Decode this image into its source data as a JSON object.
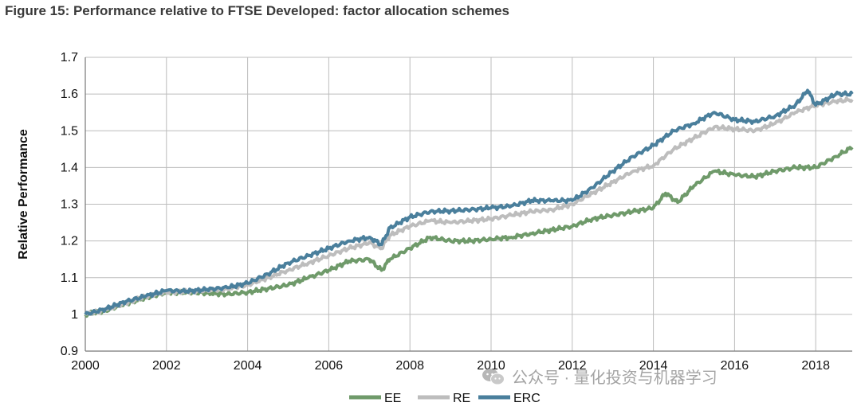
{
  "figure": {
    "title": "Figure 15: Performance relative to FTSE Developed: factor allocation schemes"
  },
  "watermark": {
    "text": "公众号 · 量化投资与机器学习"
  },
  "chart_data": {
    "type": "line",
    "title": "Figure 15: Performance relative to FTSE Developed: factor allocation schemes",
    "xlabel": "",
    "ylabel": "Relative Performance",
    "xlim": [
      2000,
      2018.9
    ],
    "ylim": [
      0.9,
      1.7
    ],
    "xticks": [
      2000,
      2002,
      2004,
      2006,
      2008,
      2010,
      2012,
      2014,
      2016,
      2018
    ],
    "yticks": [
      0.9,
      1,
      1.1,
      1.2,
      1.3,
      1.4,
      1.5,
      1.6,
      1.7
    ],
    "ytick_labels": [
      "0.9",
      "1",
      "1.1",
      "1.2",
      "1.3",
      "1.4",
      "1.5",
      "1.6",
      "1.7"
    ],
    "grid": true,
    "legend_position": "bottom-center",
    "series": [
      {
        "name": "EE",
        "color": "#6f9a6a",
        "x": [
          2000,
          2000.5,
          2001,
          2001.5,
          2002,
          2002.5,
          2003,
          2003.5,
          2004,
          2004.5,
          2005,
          2005.5,
          2006,
          2006.5,
          2007,
          2007.3,
          2007.5,
          2008,
          2008.5,
          2009,
          2009.5,
          2010,
          2010.5,
          2011,
          2011.5,
          2012,
          2012.5,
          2013,
          2013.5,
          2014,
          2014.3,
          2014.6,
          2015,
          2015.5,
          2016,
          2016.5,
          2017,
          2017.5,
          2018,
          2018.5,
          2018.9
        ],
        "y": [
          1.0,
          1.01,
          1.03,
          1.045,
          1.06,
          1.06,
          1.058,
          1.055,
          1.06,
          1.07,
          1.08,
          1.1,
          1.12,
          1.145,
          1.15,
          1.12,
          1.15,
          1.18,
          1.21,
          1.2,
          1.2,
          1.205,
          1.21,
          1.22,
          1.23,
          1.24,
          1.26,
          1.27,
          1.28,
          1.29,
          1.33,
          1.305,
          1.35,
          1.39,
          1.38,
          1.375,
          1.39,
          1.4,
          1.4,
          1.43,
          1.455
        ]
      },
      {
        "name": "RE",
        "color": "#bdbdbd",
        "x": [
          2000,
          2000.5,
          2001,
          2001.5,
          2002,
          2002.5,
          2003,
          2003.5,
          2004,
          2004.5,
          2005,
          2005.5,
          2006,
          2006.5,
          2007,
          2007.3,
          2007.5,
          2008,
          2008.5,
          2009,
          2009.5,
          2010,
          2010.5,
          2011,
          2011.5,
          2012,
          2012.5,
          2013,
          2013.5,
          2014,
          2014.5,
          2015,
          2015.5,
          2016,
          2016.5,
          2017,
          2017.5,
          2018,
          2018.5,
          2018.9
        ],
        "y": [
          1.0,
          1.012,
          1.03,
          1.05,
          1.06,
          1.062,
          1.065,
          1.07,
          1.08,
          1.1,
          1.12,
          1.14,
          1.16,
          1.18,
          1.195,
          1.18,
          1.215,
          1.24,
          1.255,
          1.25,
          1.255,
          1.26,
          1.27,
          1.28,
          1.285,
          1.3,
          1.33,
          1.36,
          1.39,
          1.405,
          1.45,
          1.48,
          1.51,
          1.505,
          1.5,
          1.52,
          1.55,
          1.57,
          1.58,
          1.585
        ]
      },
      {
        "name": "ERC",
        "color": "#4a7f9c",
        "x": [
          2000,
          2000.5,
          2001,
          2001.5,
          2002,
          2002.5,
          2003,
          2003.5,
          2004,
          2004.5,
          2005,
          2005.5,
          2006,
          2006.5,
          2007,
          2007.3,
          2007.5,
          2008,
          2008.5,
          2009,
          2009.5,
          2010,
          2010.5,
          2011,
          2011.5,
          2012,
          2012.5,
          2013,
          2013.5,
          2014,
          2014.5,
          2015,
          2015.5,
          2016,
          2016.5,
          2017,
          2017.5,
          2017.8,
          2018,
          2018.5,
          2018.9
        ],
        "y": [
          1.0,
          1.015,
          1.035,
          1.05,
          1.065,
          1.063,
          1.068,
          1.073,
          1.085,
          1.11,
          1.14,
          1.16,
          1.18,
          1.2,
          1.21,
          1.19,
          1.235,
          1.265,
          1.28,
          1.282,
          1.285,
          1.29,
          1.295,
          1.31,
          1.31,
          1.31,
          1.345,
          1.39,
          1.43,
          1.46,
          1.5,
          1.52,
          1.55,
          1.53,
          1.525,
          1.54,
          1.57,
          1.61,
          1.57,
          1.6,
          1.6
        ]
      }
    ]
  }
}
